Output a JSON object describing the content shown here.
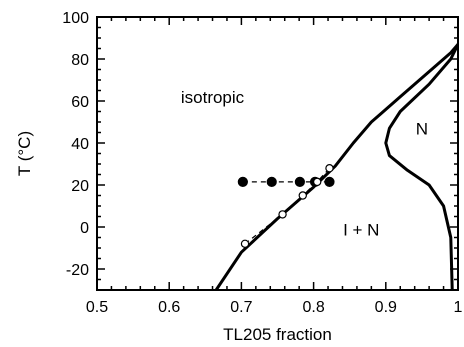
{
  "chart_data": {
    "type": "line",
    "title": "",
    "xlabel": "TL205 fraction",
    "ylabel": "T (°C)",
    "xlim": [
      0.5,
      1.0
    ],
    "ylim": [
      -30,
      100
    ],
    "x_ticks": [
      0.5,
      0.6,
      0.7,
      0.8,
      0.9,
      1
    ],
    "x_tick_labels": [
      "0.5",
      "0.6",
      "0.7",
      "0.8",
      "0.9",
      "1"
    ],
    "y_ticks": [
      -20,
      0,
      20,
      40,
      60,
      80,
      100
    ],
    "y_tick_labels": [
      "-20",
      "0",
      "20",
      "40",
      "60",
      "80",
      "100"
    ],
    "grid": false,
    "legend": "none",
    "region_labels": [
      {
        "text": "isotropic",
        "x": 0.66,
        "y": 59
      },
      {
        "text": "N",
        "x": 0.95,
        "y": 44
      },
      {
        "text": "I + N",
        "x": 0.866,
        "y": -4
      }
    ],
    "series": [
      {
        "style": "solid-thick",
        "x": [
          0.665,
          0.7,
          0.75,
          0.8,
          0.83,
          0.855,
          0.88,
          0.92,
          0.96,
          0.99,
          1.0
        ],
        "y": [
          -30,
          -12,
          4,
          19,
          29,
          40,
          50,
          62,
          74,
          83,
          87
        ]
      },
      {
        "style": "solid-thick",
        "x": [
          1.0,
          0.99,
          0.96,
          0.92,
          0.905,
          0.9,
          0.905,
          0.93,
          0.96,
          0.98,
          0.99,
          0.992
        ],
        "y": [
          87,
          80,
          68,
          55,
          47,
          40,
          34,
          27,
          20,
          10,
          -5,
          -30
        ]
      },
      {
        "style": "dashed-filled",
        "x": [
          0.702,
          0.742,
          0.781,
          0.802,
          0.822
        ],
        "y": [
          21.5,
          21.5,
          21.5,
          21.5,
          21.5
        ]
      },
      {
        "style": "dashed-open",
        "x": [
          0.705,
          0.757,
          0.785,
          0.805,
          0.822
        ],
        "y": [
          -8,
          6,
          15,
          21.5,
          28
        ]
      }
    ]
  }
}
